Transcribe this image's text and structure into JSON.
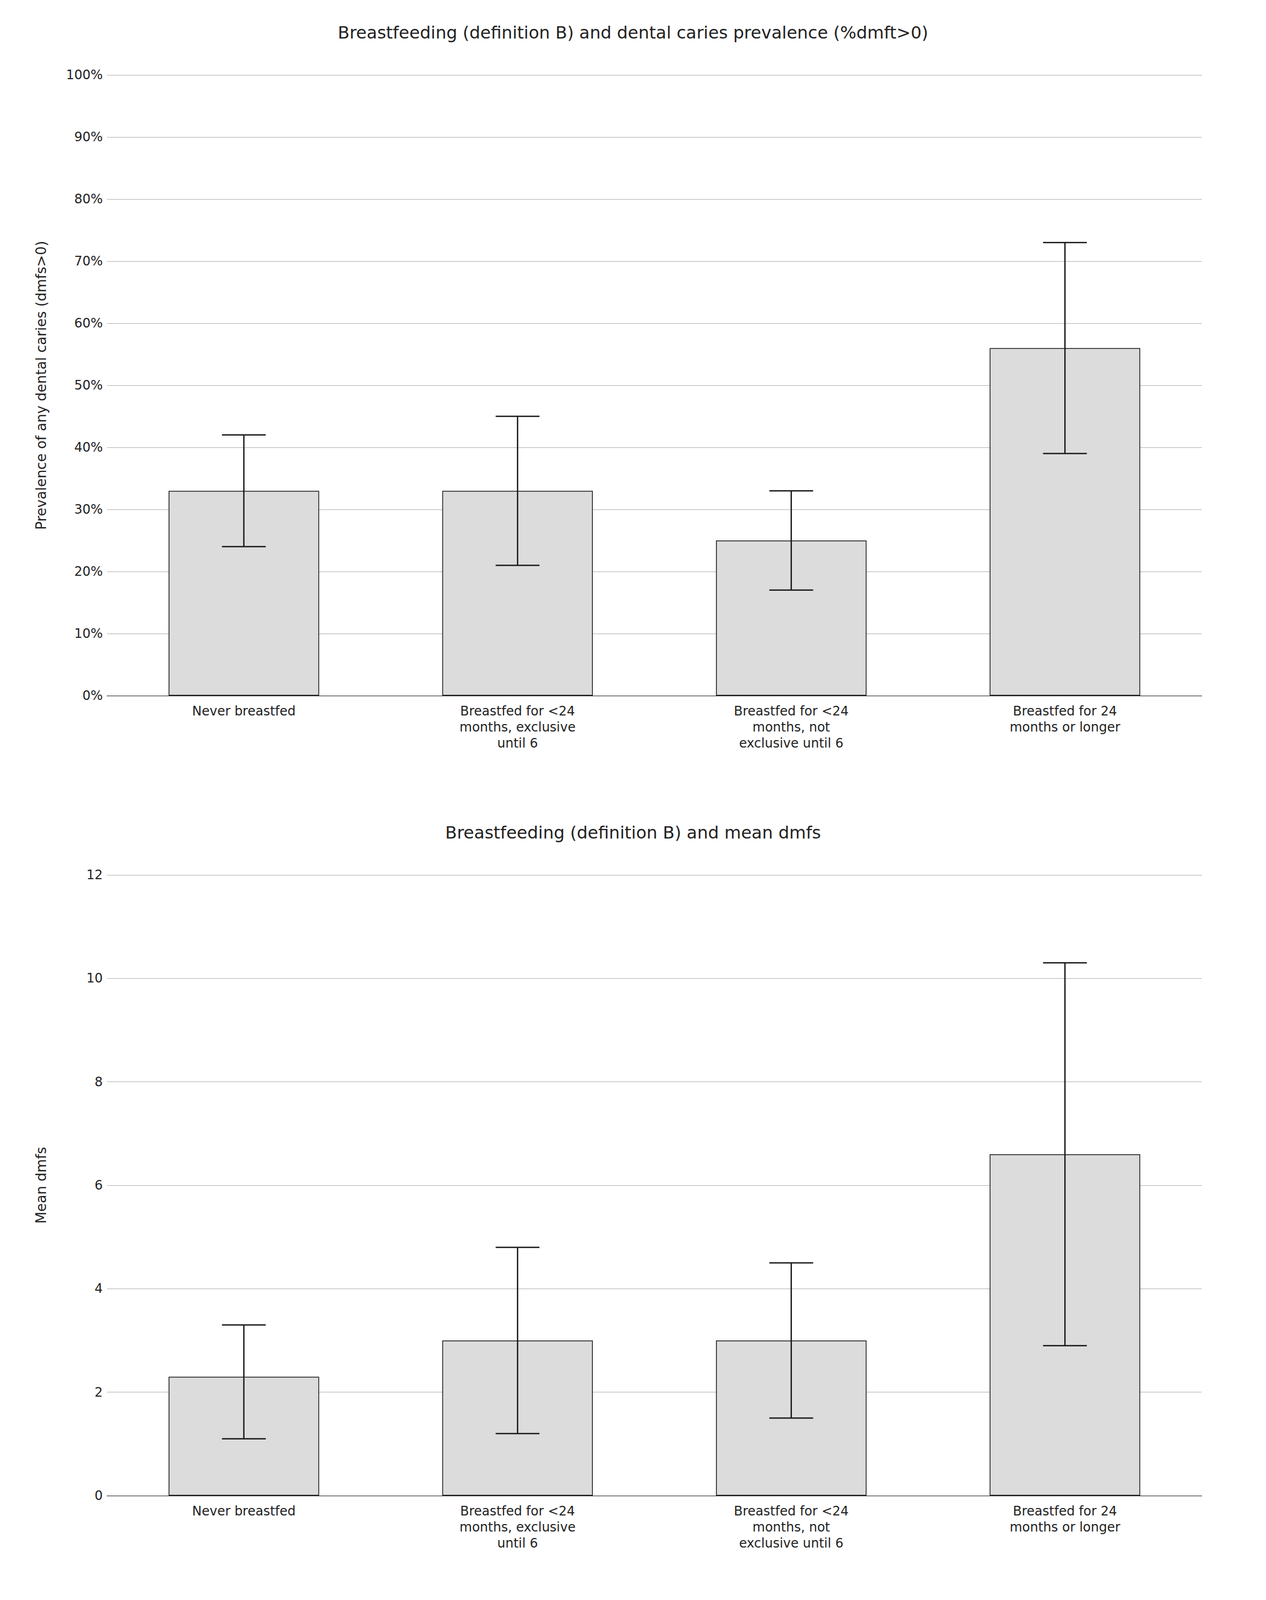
{
  "chart_data": [
    {
      "type": "bar",
      "title": "Breastfeeding (definition B) and dental caries prevalence (%dmft>0)",
      "ylabel": "Prevalence of any dental caries (dmfs>0)",
      "categories": [
        "Never breastfed",
        "Breastfed for <24\nmonths, exclusive\nuntil 6",
        "Breastfed for <24\nmonths, not\nexclusive until 6",
        "Breastfed for 24\nmonths or longer"
      ],
      "values": [
        0.33,
        0.33,
        0.25,
        0.56
      ],
      "errors_upper": [
        0.09,
        0.12,
        0.08,
        0.17
      ],
      "errors_lower": [
        0.09,
        0.12,
        0.08,
        0.17
      ],
      "color": "#dcdcdc",
      "ylim": [
        0,
        1.0
      ],
      "yticks": [
        {
          "value": 0,
          "label": "0%"
        },
        {
          "value": 0.1,
          "label": "10%"
        },
        {
          "value": 0.2,
          "label": "20%"
        },
        {
          "value": 0.3,
          "label": "30%"
        },
        {
          "value": 0.4,
          "label": "40%"
        },
        {
          "value": 0.5,
          "label": "50%"
        },
        {
          "value": 0.6,
          "label": "60%"
        },
        {
          "value": 0.7,
          "label": "70%"
        },
        {
          "value": 0.8,
          "label": "80%"
        },
        {
          "value": 0.9,
          "label": "90%"
        },
        {
          "value": 1.0,
          "label": "100%"
        }
      ],
      "grid": true
    },
    {
      "type": "bar",
      "title": "Breastfeeding (definition B) and mean dmfs",
      "ylabel": "Mean dmfs",
      "categories": [
        "Never breastfed",
        "Breastfed for <24\nmonths, exclusive\nuntil 6",
        "Breastfed for <24\nmonths, not\nexclusive until 6",
        "Breastfed for 24\nmonths or longer"
      ],
      "values": [
        2.3,
        3.0,
        3.0,
        6.6
      ],
      "errors_upper": [
        1.0,
        1.8,
        1.5,
        3.7
      ],
      "errors_lower": [
        1.2,
        1.8,
        1.5,
        3.7
      ],
      "color": "#dcdcdc",
      "ylim": [
        0,
        12
      ],
      "yticks": [
        0,
        2,
        4,
        6,
        8,
        10,
        12
      ],
      "grid": true
    }
  ]
}
